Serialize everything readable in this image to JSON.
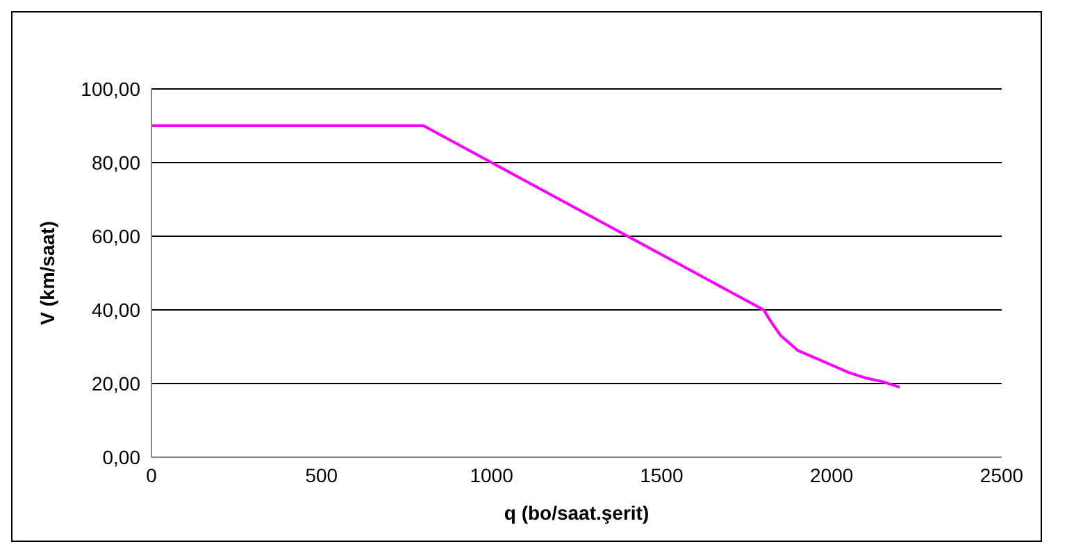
{
  "chart_data": {
    "type": "line",
    "xlabel": "q (bo/saat.şerit)",
    "ylabel": "V (km/saat)",
    "x": [
      0,
      200,
      400,
      600,
      800,
      900,
      1000,
      1200,
      1400,
      1600,
      1800,
      1820,
      1850,
      1900,
      1950,
      2000,
      2050,
      2100,
      2150,
      2200
    ],
    "series": [
      {
        "color": "#ff00ff",
        "values": [
          90,
          90,
          90,
          90,
          90,
          85,
          80,
          70,
          60,
          50,
          40,
          37,
          33,
          29,
          27,
          25,
          23,
          21.5,
          20.5,
          19
        ]
      }
    ],
    "xlim": [
      0,
      2500
    ],
    "xticks": [
      0,
      500,
      1000,
      1500,
      2000,
      2500
    ],
    "ylim": [
      0,
      100
    ],
    "yticks": [
      {
        "value": 0,
        "label": "0,00"
      },
      {
        "value": 20,
        "label": "20,00"
      },
      {
        "value": 40,
        "label": "40,00"
      },
      {
        "value": 60,
        "label": "60,00"
      },
      {
        "value": 80,
        "label": "80,00"
      },
      {
        "value": 100,
        "label": "100,00"
      }
    ],
    "grid": "y",
    "legend": false,
    "marker": "none",
    "line_style": "solid"
  }
}
